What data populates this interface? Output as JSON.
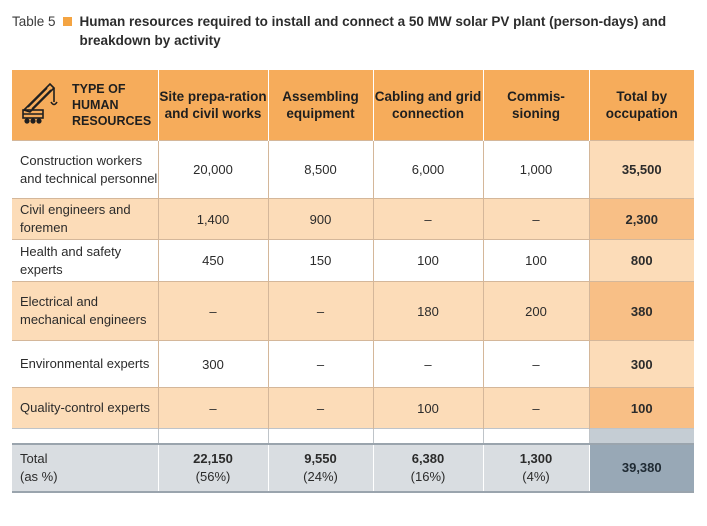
{
  "caption": {
    "label": "Table 5",
    "title": "Human resources required to install and connect a 50 MW solar PV plant (person-days) and breakdown by activity"
  },
  "colors": {
    "accent": "#f4a442",
    "header": "#f6ac5b",
    "row_alt": "#fcdcb8",
    "total_col": "#f8bf86",
    "totals_row": "#d9dde1",
    "grand_total": "#98a8b6"
  },
  "icons": {
    "header_icon": "crane-icon"
  },
  "table": {
    "headers": [
      "TYPE OF HUMAN RESOURCES",
      "Site prepa-ration and civil works",
      "Assembling equipment",
      "Cabling and grid connection",
      "Commis-sioning",
      "Total by occupation"
    ],
    "rows": [
      {
        "category": "Construction workers and technical personnel",
        "site": "20,000",
        "assembling": "8,500",
        "cabling": "6,000",
        "commissioning": "1,000",
        "total": "35,500"
      },
      {
        "category": "Civil engineers and foremen",
        "site": "1,400",
        "assembling": "900",
        "cabling": "–",
        "commissioning": "–",
        "total": "2,300"
      },
      {
        "category": "Health and safety experts",
        "site": "450",
        "assembling": "150",
        "cabling": "100",
        "commissioning": "100",
        "total": "800"
      },
      {
        "category": "Electrical and mechanical engineers",
        "site": "–",
        "assembling": "–",
        "cabling": "180",
        "commissioning": "200",
        "total": "380"
      },
      {
        "category": "Environmental experts",
        "site": "300",
        "assembling": "–",
        "cabling": "–",
        "commissioning": "–",
        "total": "300"
      },
      {
        "category": "Quality-control experts",
        "site": "–",
        "assembling": "–",
        "cabling": "100",
        "commissioning": "–",
        "total": "100"
      }
    ],
    "totals": {
      "label": "Total",
      "sublabel": "(as %)",
      "site": "22,150",
      "site_pct": "(56%)",
      "assembling": "9,550",
      "assembling_pct": "(24%)",
      "cabling": "6,380",
      "cabling_pct": "(16%)",
      "commissioning": "1,300",
      "commissioning_pct": "(4%)",
      "grand_total": "39,380"
    }
  }
}
